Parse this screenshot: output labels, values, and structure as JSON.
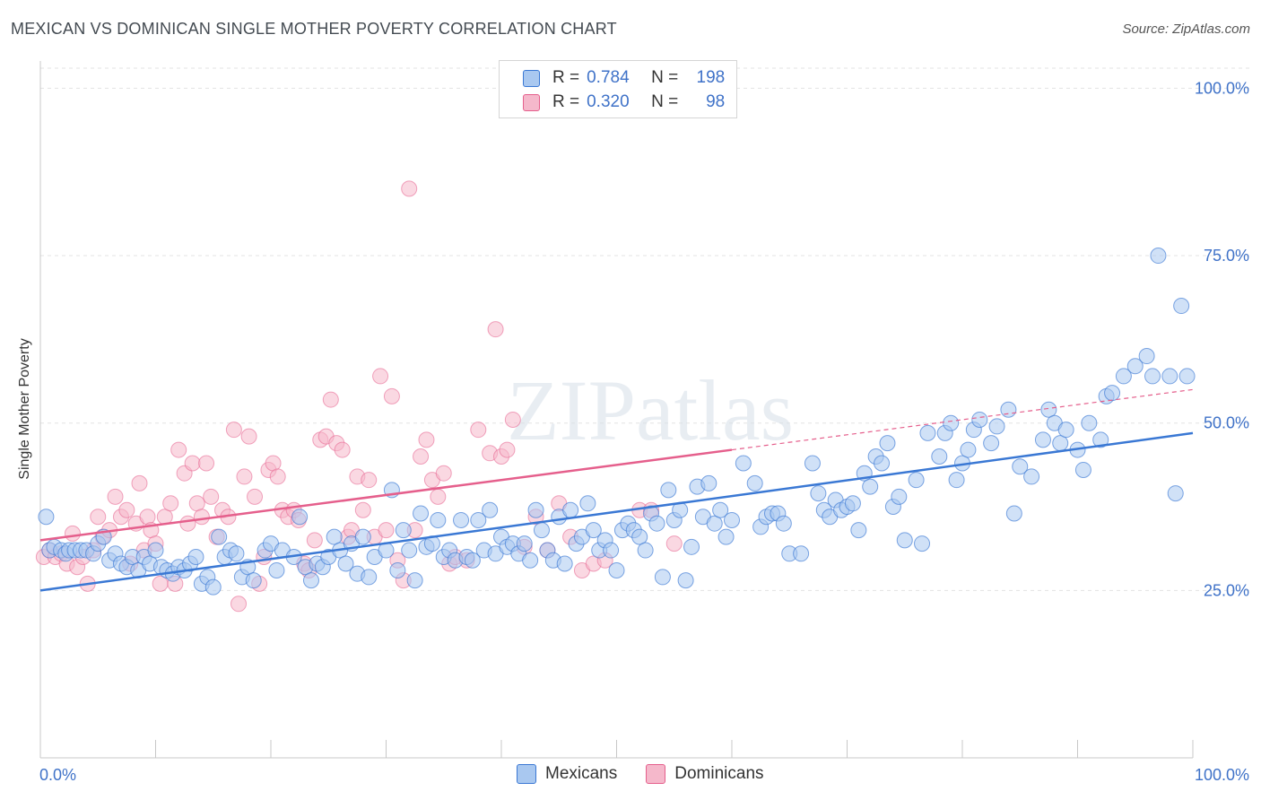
{
  "title": "MEXICAN VS DOMINICAN SINGLE MOTHER POVERTY CORRELATION CHART",
  "source": "Source: ZipAtlas.com",
  "watermark": "ZIPatlas",
  "colors": {
    "blue": "#3a78d4",
    "blue_fill": "#a9c8f0",
    "pink": "#e55f8c",
    "pink_fill": "#f5b8cb",
    "accent_text": "#3f72c8"
  },
  "legend": {
    "rows": [
      {
        "r_label": "R =",
        "r_value": "0.784",
        "n_label": "N =",
        "n_value": "198"
      },
      {
        "r_label": "R =",
        "r_value": "0.320",
        "n_label": "N =",
        "n_value": "98"
      }
    ]
  },
  "bottom_legend": {
    "items": [
      "Mexicans",
      "Dominicans"
    ]
  },
  "chart_data": {
    "type": "scatter",
    "title": "MEXICAN VS DOMINICAN SINGLE MOTHER POVERTY CORRELATION CHART",
    "xlabel": "",
    "ylabel": "Single Mother Poverty",
    "xlim": [
      0,
      100
    ],
    "ylim": [
      0,
      103
    ],
    "x_tick_labels": [
      "0.0%",
      "100.0%"
    ],
    "y_ticks": [
      25,
      50,
      75,
      100
    ],
    "y_tick_labels": [
      "25.0%",
      "50.0%",
      "75.0%",
      "100.0%"
    ],
    "grid": true,
    "legend_position": "top-center",
    "series": [
      {
        "name": "Mexicans",
        "r": 0.784,
        "n": 198,
        "trend": {
          "x": [
            0,
            100
          ],
          "y": [
            25.0,
            48.5
          ]
        },
        "points": [
          [
            0.5,
            36
          ],
          [
            0.8,
            31
          ],
          [
            1.2,
            31.5
          ],
          [
            1.8,
            31
          ],
          [
            2.2,
            30.5
          ],
          [
            2.5,
            31
          ],
          [
            3,
            31
          ],
          [
            3.5,
            31
          ],
          [
            4,
            31
          ],
          [
            4.6,
            30.5
          ],
          [
            5,
            32
          ],
          [
            5.5,
            33
          ],
          [
            6,
            29.5
          ],
          [
            6.5,
            30.5
          ],
          [
            7,
            29
          ],
          [
            7.5,
            28.5
          ],
          [
            8,
            30
          ],
          [
            8.5,
            28
          ],
          [
            9,
            30
          ],
          [
            9.5,
            29
          ],
          [
            10,
            31
          ],
          [
            10.5,
            28.5
          ],
          [
            11,
            28
          ],
          [
            11.5,
            27.5
          ],
          [
            12,
            28.5
          ],
          [
            12.5,
            28
          ],
          [
            13,
            29
          ],
          [
            13.5,
            30
          ],
          [
            14,
            26
          ],
          [
            14.5,
            27
          ],
          [
            15,
            25.5
          ],
          [
            15.5,
            33
          ],
          [
            16,
            30
          ],
          [
            16.5,
            31
          ],
          [
            17,
            30.5
          ],
          [
            17.5,
            27
          ],
          [
            18,
            28.5
          ],
          [
            18.5,
            26.5
          ],
          [
            19.5,
            31
          ],
          [
            20,
            32
          ],
          [
            20.5,
            28
          ],
          [
            21,
            31
          ],
          [
            22,
            30
          ],
          [
            22.5,
            36
          ],
          [
            23,
            28.5
          ],
          [
            23.5,
            26.5
          ],
          [
            24,
            29
          ],
          [
            24.5,
            28.5
          ],
          [
            25,
            30
          ],
          [
            25.5,
            33
          ],
          [
            26,
            31
          ],
          [
            26.5,
            29
          ],
          [
            27,
            32
          ],
          [
            27.5,
            27.5
          ],
          [
            28,
            33
          ],
          [
            28.5,
            27
          ],
          [
            29,
            30
          ],
          [
            30,
            31
          ],
          [
            30.5,
            40
          ],
          [
            31,
            28
          ],
          [
            31.5,
            34
          ],
          [
            32,
            31
          ],
          [
            32.5,
            26.5
          ],
          [
            33,
            36.5
          ],
          [
            33.5,
            31.5
          ],
          [
            34,
            32
          ],
          [
            34.5,
            35.5
          ],
          [
            35,
            30
          ],
          [
            35.5,
            31
          ],
          [
            36,
            29.5
          ],
          [
            36.5,
            35.5
          ],
          [
            37,
            30
          ],
          [
            37.5,
            29.5
          ],
          [
            38,
            35.5
          ],
          [
            38.5,
            31
          ],
          [
            39,
            37
          ],
          [
            39.5,
            30.5
          ],
          [
            40,
            33
          ],
          [
            40.5,
            31.5
          ],
          [
            41,
            32
          ],
          [
            41.5,
            30.5
          ],
          [
            42,
            32
          ],
          [
            42.5,
            29.5
          ],
          [
            43,
            37
          ],
          [
            43.5,
            34
          ],
          [
            44,
            31
          ],
          [
            44.5,
            29.5
          ],
          [
            45,
            36
          ],
          [
            45.5,
            29
          ],
          [
            46,
            37
          ],
          [
            46.5,
            32
          ],
          [
            47,
            33
          ],
          [
            47.5,
            38
          ],
          [
            48,
            34
          ],
          [
            48.5,
            31
          ],
          [
            49,
            32.5
          ],
          [
            49.5,
            31
          ],
          [
            50,
            28
          ],
          [
            50.5,
            34
          ],
          [
            51,
            35
          ],
          [
            51.5,
            34
          ],
          [
            52,
            33
          ],
          [
            52.5,
            31
          ],
          [
            53,
            36.5
          ],
          [
            53.5,
            35
          ],
          [
            54,
            27
          ],
          [
            54.5,
            40
          ],
          [
            55,
            35.5
          ],
          [
            55.5,
            37
          ],
          [
            56,
            26.5
          ],
          [
            56.5,
            31.5
          ],
          [
            57,
            40.5
          ],
          [
            57.5,
            36
          ],
          [
            58,
            41
          ],
          [
            58.5,
            35
          ],
          [
            59,
            37
          ],
          [
            59.5,
            33
          ],
          [
            60,
            35.5
          ],
          [
            61,
            44
          ],
          [
            62,
            41
          ],
          [
            62.5,
            34.5
          ],
          [
            63,
            36
          ],
          [
            63.5,
            36.5
          ],
          [
            64,
            36.5
          ],
          [
            64.5,
            35
          ],
          [
            65,
            30.5
          ],
          [
            66,
            30.5
          ],
          [
            67,
            44
          ],
          [
            67.5,
            39.5
          ],
          [
            68,
            37
          ],
          [
            68.5,
            36
          ],
          [
            69,
            38.5
          ],
          [
            69.5,
            37
          ],
          [
            70,
            37.5
          ],
          [
            70.5,
            38
          ],
          [
            71,
            34
          ],
          [
            71.5,
            42.5
          ],
          [
            72,
            40.5
          ],
          [
            72.5,
            45
          ],
          [
            73,
            44
          ],
          [
            73.5,
            47
          ],
          [
            74,
            37.5
          ],
          [
            74.5,
            39
          ],
          [
            75,
            32.5
          ],
          [
            76,
            41.5
          ],
          [
            76.5,
            32
          ],
          [
            77,
            48.5
          ],
          [
            78,
            45
          ],
          [
            78.5,
            48.5
          ],
          [
            79,
            50
          ],
          [
            79.5,
            41.5
          ],
          [
            80,
            44
          ],
          [
            80.5,
            46
          ],
          [
            81,
            49
          ],
          [
            81.5,
            50.5
          ],
          [
            82.5,
            47
          ],
          [
            83,
            49.5
          ],
          [
            84,
            52
          ],
          [
            84.5,
            36.5
          ],
          [
            85,
            43.5
          ],
          [
            86,
            42
          ],
          [
            87,
            47.5
          ],
          [
            87.5,
            52
          ],
          [
            88,
            50
          ],
          [
            88.5,
            47
          ],
          [
            89,
            49
          ],
          [
            90,
            46
          ],
          [
            90.5,
            43
          ],
          [
            91,
            50
          ],
          [
            92,
            47.5
          ],
          [
            92.5,
            54
          ],
          [
            93,
            54.5
          ],
          [
            94,
            57
          ],
          [
            95,
            58.5
          ],
          [
            96,
            60
          ],
          [
            96.5,
            57
          ],
          [
            97,
            75
          ],
          [
            98,
            57
          ],
          [
            98.5,
            39.5
          ],
          [
            99,
            67.5
          ],
          [
            99.5,
            57
          ]
        ]
      },
      {
        "name": "Dominicans",
        "r": 0.32,
        "n": 98,
        "trend": {
          "x": [
            0,
            60,
            100
          ],
          "y": [
            32.5,
            46.0,
            55.0
          ]
        },
        "points": [
          [
            0.3,
            30
          ],
          [
            0.8,
            31
          ],
          [
            1.3,
            30
          ],
          [
            1.8,
            30.5
          ],
          [
            2.3,
            29
          ],
          [
            2.8,
            33.5
          ],
          [
            3.2,
            28.5
          ],
          [
            3.7,
            30
          ],
          [
            4.1,
            26
          ],
          [
            4.6,
            31
          ],
          [
            5,
            36
          ],
          [
            5.4,
            33
          ],
          [
            6,
            34
          ],
          [
            6.5,
            39
          ],
          [
            7,
            36
          ],
          [
            7.5,
            37
          ],
          [
            7.8,
            29
          ],
          [
            8.3,
            35
          ],
          [
            8.6,
            41
          ],
          [
            9,
            31
          ],
          [
            9.3,
            36
          ],
          [
            9.6,
            34
          ],
          [
            10,
            32
          ],
          [
            10.4,
            26
          ],
          [
            10.8,
            36
          ],
          [
            11.3,
            38
          ],
          [
            11.7,
            26
          ],
          [
            12,
            46
          ],
          [
            12.5,
            42.5
          ],
          [
            12.8,
            35
          ],
          [
            13.2,
            44
          ],
          [
            13.6,
            38
          ],
          [
            14,
            36
          ],
          [
            14.4,
            44
          ],
          [
            14.8,
            39
          ],
          [
            15.3,
            33
          ],
          [
            15.8,
            37
          ],
          [
            16.3,
            36
          ],
          [
            16.8,
            49
          ],
          [
            17.2,
            23
          ],
          [
            17.7,
            42
          ],
          [
            18.1,
            48
          ],
          [
            18.6,
            39
          ],
          [
            19,
            26
          ],
          [
            19.4,
            30
          ],
          [
            19.8,
            43
          ],
          [
            20.2,
            44
          ],
          [
            20.6,
            42
          ],
          [
            21,
            37
          ],
          [
            21.5,
            36
          ],
          [
            22,
            37
          ],
          [
            22.4,
            35.5
          ],
          [
            22.9,
            29
          ],
          [
            23.3,
            28
          ],
          [
            23.8,
            32.5
          ],
          [
            24.3,
            47.5
          ],
          [
            24.8,
            48
          ],
          [
            25.2,
            53.5
          ],
          [
            25.7,
            47
          ],
          [
            26.2,
            46
          ],
          [
            26.7,
            33
          ],
          [
            27,
            34
          ],
          [
            27.5,
            42
          ],
          [
            28,
            37
          ],
          [
            28.5,
            41.5
          ],
          [
            29,
            33
          ],
          [
            29.5,
            57
          ],
          [
            30,
            34
          ],
          [
            30.5,
            54
          ],
          [
            31,
            29.5
          ],
          [
            31.5,
            26.5
          ],
          [
            32,
            85
          ],
          [
            32.5,
            34
          ],
          [
            33,
            45
          ],
          [
            33.5,
            47.5
          ],
          [
            34,
            41.5
          ],
          [
            34.5,
            39
          ],
          [
            35,
            42.5
          ],
          [
            35.5,
            29
          ],
          [
            36,
            30
          ],
          [
            37,
            29.5
          ],
          [
            38,
            49
          ],
          [
            39,
            45.5
          ],
          [
            39.5,
            64
          ],
          [
            40,
            45
          ],
          [
            40.5,
            46
          ],
          [
            41,
            50.5
          ],
          [
            42,
            31.5
          ],
          [
            43,
            36
          ],
          [
            44,
            31
          ],
          [
            45,
            38
          ],
          [
            46,
            33
          ],
          [
            47,
            28
          ],
          [
            48,
            29
          ],
          [
            49,
            29.5
          ],
          [
            52,
            37
          ],
          [
            53,
            37
          ],
          [
            55,
            32
          ]
        ]
      }
    ]
  }
}
